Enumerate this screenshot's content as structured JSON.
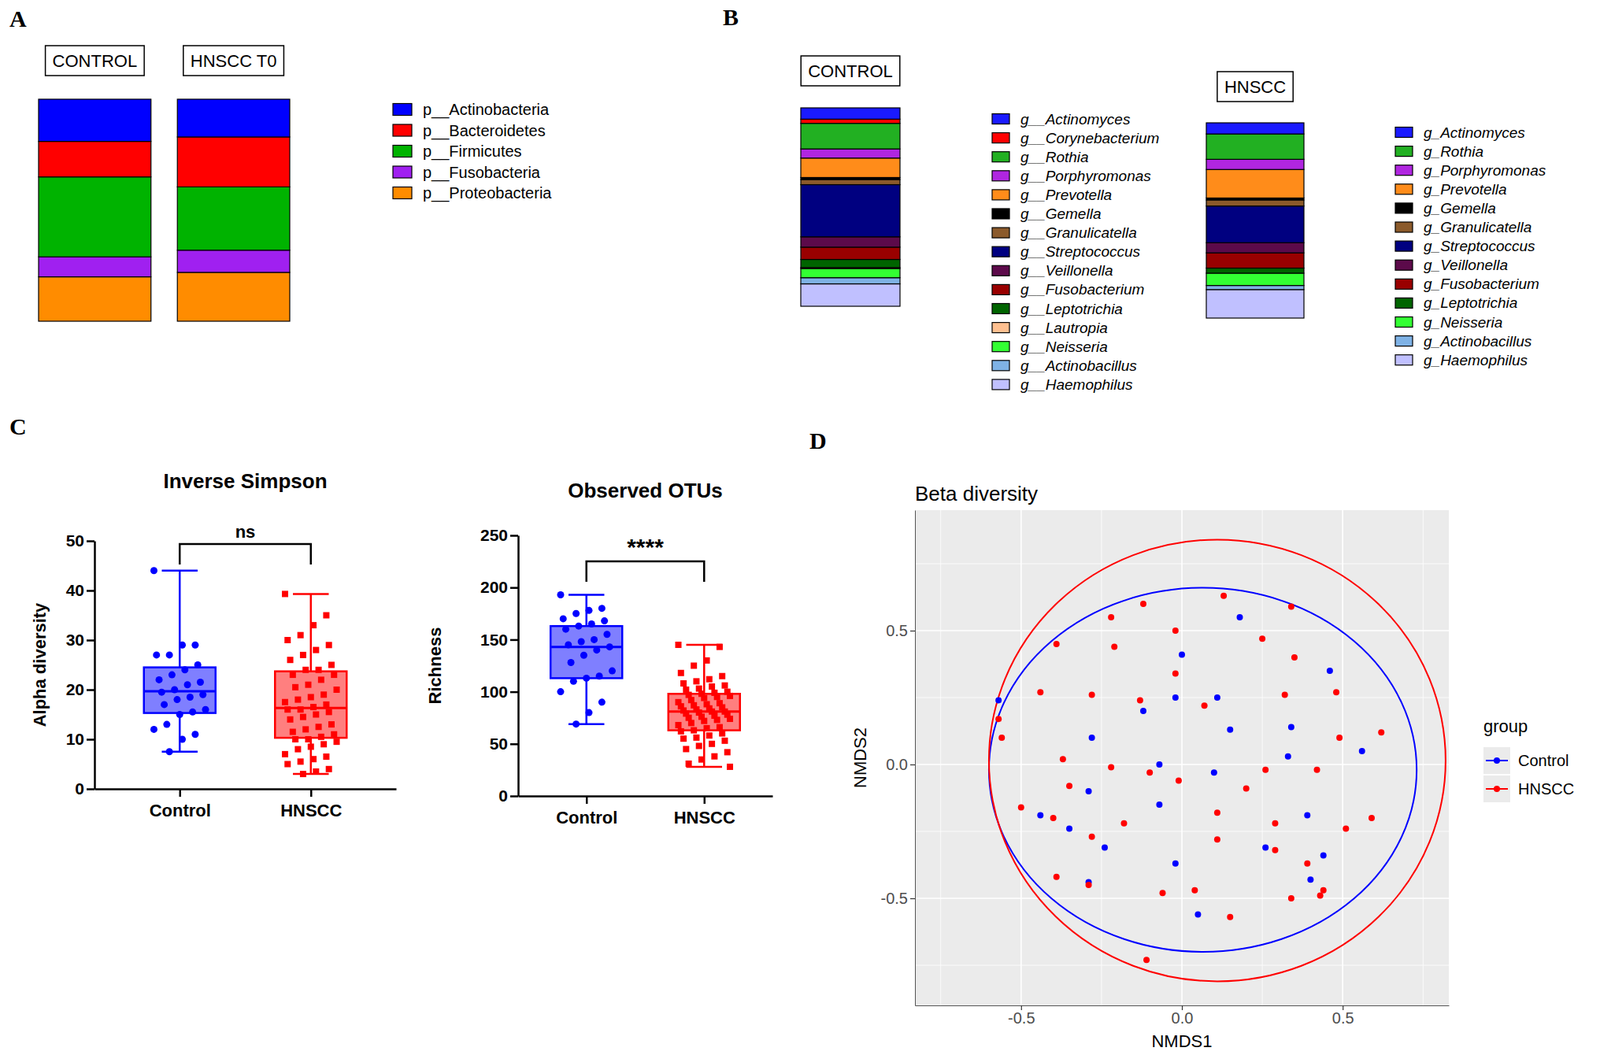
{
  "chart_data": [
    {
      "type": "bar",
      "stacked": true,
      "panel": "A",
      "tick_labels": false,
      "categories": [
        "CONTROL",
        "HNSCC T0"
      ],
      "ylim": [
        0,
        100
      ],
      "series": [
        {
          "name": "p__Actinobacteria",
          "color": "#0000ff",
          "values": [
            19,
            17
          ]
        },
        {
          "name": "p__Bacteroidetes",
          "color": "#ff0000",
          "values": [
            16,
            22.5
          ]
        },
        {
          "name": "p__Firmicutes",
          "color": "#00b300",
          "values": [
            36,
            28.5
          ]
        },
        {
          "name": "p__Fusobacteria",
          "color": "#a020f0",
          "values": [
            9,
            10
          ]
        },
        {
          "name": "p__Proteobacteria",
          "color": "#ff8c00",
          "values": [
            20,
            22
          ]
        }
      ]
    },
    {
      "type": "bar",
      "stacked": true,
      "panel": "B",
      "tick_labels": false,
      "categories": [
        "CONTROL"
      ],
      "ylim": [
        0,
        100
      ],
      "series": [
        {
          "name": "g__Actinomyces",
          "color": "#1a1aff",
          "values": [
            5.7
          ]
        },
        {
          "name": "g__Corynebacterium",
          "color": "#ff0000",
          "values": [
            2.1
          ]
        },
        {
          "name": "g__Rothia",
          "color": "#22b022",
          "values": [
            12.9
          ]
        },
        {
          "name": "g__Porphyromonas",
          "color": "#b026e0",
          "values": [
            4.6
          ]
        },
        {
          "name": "g__Prevotella",
          "color": "#ff8c1a",
          "values": [
            9.8
          ]
        },
        {
          "name": "g__Gemella",
          "color": "#000000",
          "values": [
            1.0
          ]
        },
        {
          "name": "g__Granulicatella",
          "color": "#8b5a2b",
          "values": [
            2.6
          ]
        },
        {
          "name": "g__Streptococcus",
          "color": "#000080",
          "values": [
            26.3
          ]
        },
        {
          "name": "g__Veillonella",
          "color": "#5c0a4a",
          "values": [
            5.2
          ]
        },
        {
          "name": "g__Fusobacterium",
          "color": "#990000",
          "values": [
            6.2
          ]
        },
        {
          "name": "g__Leptotrichia",
          "color": "#006400",
          "values": [
            4.1
          ]
        },
        {
          "name": "g__Lautropia",
          "color": "#ffc090",
          "values": [
            0.5
          ]
        },
        {
          "name": "g__Neisseria",
          "color": "#33ff33",
          "values": [
            4.6
          ]
        },
        {
          "name": "g__Actinobacillus",
          "color": "#7fb2e5",
          "values": [
            3.1
          ]
        },
        {
          "name": "g__Haemophilus",
          "color": "#c0c0ff",
          "values": [
            11.3
          ]
        }
      ]
    },
    {
      "type": "bar",
      "stacked": true,
      "tick_labels": false,
      "categories": [
        "HNSCC"
      ],
      "ylim": [
        0,
        100
      ],
      "series": [
        {
          "name": "g_Actinomyces",
          "color": "#1a1aff",
          "values": [
            5.7
          ]
        },
        {
          "name": "g_Rothia",
          "color": "#22b022",
          "values": [
            13.0
          ]
        },
        {
          "name": "g_Porphyromonas",
          "color": "#b026e0",
          "values": [
            5.2
          ]
        },
        {
          "name": "g_Prevotella",
          "color": "#ff8c1a",
          "values": [
            14.6
          ]
        },
        {
          "name": "g_Gemella",
          "color": "#000000",
          "values": [
            1.0
          ]
        },
        {
          "name": "g_Granulicatella",
          "color": "#8b5a2b",
          "values": [
            3.1
          ]
        },
        {
          "name": "g_Streptococcus",
          "color": "#000080",
          "values": [
            18.8
          ]
        },
        {
          "name": "g_Veillonella",
          "color": "#5c0a4a",
          "values": [
            5.2
          ]
        },
        {
          "name": "g_Fusobacterium",
          "color": "#990000",
          "values": [
            7.8
          ]
        },
        {
          "name": "g_Leptotrichia",
          "color": "#006400",
          "values": [
            2.6
          ]
        },
        {
          "name": "g_Neisseria",
          "color": "#33ff33",
          "values": [
            6.3
          ]
        },
        {
          "name": "g_Actinobacillus",
          "color": "#7fb2e5",
          "values": [
            2.1
          ]
        },
        {
          "name": "g_Haemophilus",
          "color": "#c0c0ff",
          "values": [
            14.6
          ]
        }
      ]
    },
    {
      "type": "box",
      "panel": "C",
      "title": "Inverse Simpson",
      "y_label": "Alpha diversity",
      "categories": [
        "Control",
        "HNSCC"
      ],
      "ylim": [
        0,
        50
      ],
      "yticks": [
        0,
        10,
        20,
        30,
        40,
        50
      ],
      "annotations": [
        "ns"
      ],
      "boxes": [
        {
          "color": "#0000ff",
          "marker": "circle",
          "min": 7.5,
          "q1": 15.3,
          "median": 19.7,
          "q3": 24.5,
          "max": 44,
          "points": [
            44,
            29,
            29,
            27,
            27,
            25,
            24,
            23,
            22,
            21.5,
            21,
            20,
            19.5,
            19,
            18.5,
            18,
            17,
            16,
            15.5,
            15,
            13,
            12,
            11,
            10,
            7.5
          ]
        },
        {
          "color": "#ff0000",
          "marker": "square",
          "min": 3,
          "q1": 10.3,
          "median": 16.3,
          "q3": 23.7,
          "max": 39.3,
          "points": [
            39.3,
            35,
            33,
            31,
            30,
            29,
            28,
            27,
            26,
            25,
            24,
            24,
            23,
            23,
            22,
            21,
            20.5,
            20,
            19,
            18.5,
            18,
            17.5,
            17,
            16.5,
            16,
            16,
            15.5,
            15,
            14.5,
            14,
            13,
            12.5,
            12,
            11.5,
            11,
            10.5,
            10,
            10,
            9.5,
            9,
            8.5,
            8,
            7,
            6.5,
            6,
            5.5,
            5,
            4,
            3.5,
            3
          ]
        }
      ]
    },
    {
      "type": "box",
      "title": "Observed OTUs",
      "y_label": "Richness",
      "categories": [
        "Control",
        "HNSCC"
      ],
      "ylim": [
        0,
        250
      ],
      "yticks": [
        0,
        50,
        100,
        150,
        200,
        250
      ],
      "annotations": [
        "****"
      ],
      "boxes": [
        {
          "color": "#0000ff",
          "marker": "circle",
          "min": 69,
          "q1": 113,
          "median": 143,
          "q3": 163,
          "max": 193,
          "points": [
            193,
            180,
            178,
            175,
            170,
            168,
            165,
            163,
            160,
            155,
            150,
            148,
            145,
            143,
            140,
            135,
            128,
            120,
            115,
            113,
            110,
            100,
            90,
            80,
            69
          ]
        },
        {
          "color": "#ff0000",
          "marker": "square",
          "min": 28,
          "q1": 63,
          "median": 81,
          "q3": 98,
          "max": 145,
          "points": [
            145,
            143,
            130,
            125,
            118,
            115,
            112,
            110,
            108,
            106,
            105,
            103,
            102,
            100,
            99,
            98,
            97,
            96,
            95,
            94,
            92,
            90,
            89,
            88,
            87,
            86,
            85,
            84,
            83,
            82,
            81,
            81,
            80,
            79,
            78,
            77,
            76,
            75,
            74,
            73,
            72,
            70,
            68,
            66,
            65,
            63,
            62,
            60,
            58,
            56,
            55,
            53,
            50,
            48,
            45,
            42,
            38,
            35,
            31,
            28
          ]
        }
      ]
    },
    {
      "type": "scatter",
      "panel": "D",
      "title": "Beta diversity",
      "x_label": "NMDS1",
      "y_label": "NMDS2",
      "legend_title": "group",
      "legend": "right",
      "grid": true,
      "xlim": [
        -0.83,
        0.83
      ],
      "ylim": [
        -0.9,
        0.95
      ],
      "xticks": [
        -0.5,
        {
          "value": 0,
          "label": "0.0"
        },
        0.5
      ],
      "yticks": [
        -0.5,
        {
          "value": 0,
          "label": "0.0"
        },
        0.5
      ],
      "series": [
        {
          "name": "Control",
          "color": "#0000ff",
          "x": [
            -0.57,
            0.18,
            0,
            0.46,
            -0.12,
            -0.02,
            0.11,
            0.15,
            -0.28,
            0.33,
            0.34,
            0.56,
            -0.07,
            0.1,
            -0.29,
            -0.07,
            -0.44,
            -0.35,
            -0.24,
            -0.02,
            -0.29,
            0.05,
            0.26,
            0.39,
            0.4,
            0.44
          ],
          "y": [
            0.24,
            0.55,
            0.41,
            0.35,
            0.2,
            0.25,
            0.25,
            0.13,
            0.1,
            0.03,
            0.14,
            0.05,
            0,
            -0.03,
            -0.1,
            -0.15,
            -0.19,
            -0.24,
            -0.31,
            -0.37,
            -0.44,
            -0.56,
            -0.31,
            -0.19,
            -0.43,
            -0.34
          ],
          "ellipse": {
            "cx": 0.065,
            "cy": -0.02,
            "rx": 0.665,
            "ry": 0.68
          }
        },
        {
          "name": "HNSCC",
          "color": "#ff0000",
          "x": [
            -0.57,
            -0.56,
            -0.39,
            -0.22,
            -0.12,
            0.13,
            0.34,
            -0.02,
            -0.21,
            0.25,
            -0.02,
            -0.44,
            -0.28,
            -0.13,
            0.07,
            0.32,
            0.35,
            0.48,
            0.49,
            0.62,
            -0.37,
            -0.22,
            -0.1,
            -0.01,
            0.26,
            0.42,
            -0.35,
            0.2,
            -0.5,
            -0.4,
            -0.18,
            0.11,
            0.29,
            0.59,
            0.51,
            -0.28,
            0.29,
            0.11,
            0.39,
            -0.39,
            -0.29,
            -0.06,
            0.04,
            0.43,
            0.34,
            0.44,
            0.15,
            -0.11
          ],
          "y": [
            0.17,
            0.1,
            0.45,
            0.55,
            0.6,
            0.63,
            0.59,
            0.5,
            0.44,
            0.47,
            0.34,
            0.27,
            0.26,
            0.24,
            0.22,
            0.26,
            0.4,
            0.27,
            0.1,
            0.12,
            0.02,
            -0.01,
            -0.03,
            -0.06,
            -0.02,
            -0.02,
            -0.08,
            -0.09,
            -0.16,
            -0.2,
            -0.22,
            -0.18,
            -0.22,
            -0.2,
            -0.24,
            -0.27,
            -0.32,
            -0.28,
            -0.37,
            -0.42,
            -0.45,
            -0.48,
            -0.47,
            -0.49,
            -0.5,
            -0.47,
            -0.57,
            -0.73
          ],
          "ellipse": {
            "cx": 0.11,
            "cy": 0.015,
            "rx": 0.71,
            "ry": 0.825
          }
        }
      ]
    }
  ]
}
